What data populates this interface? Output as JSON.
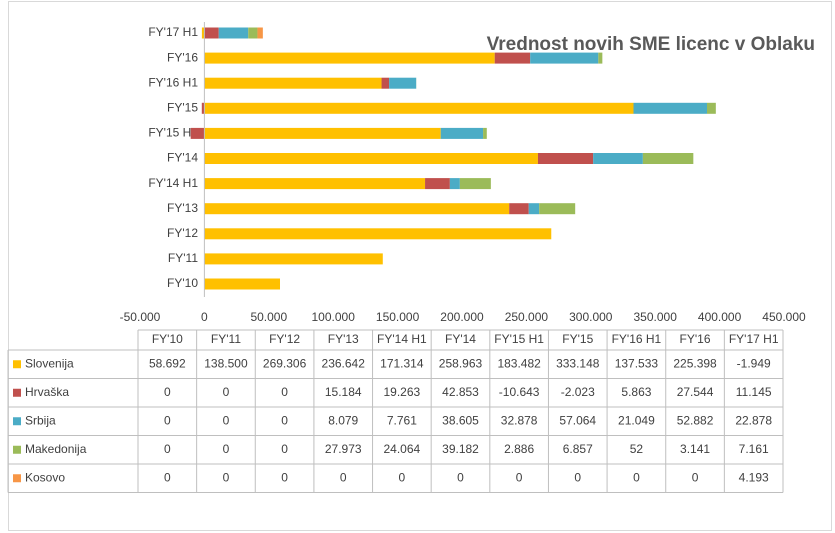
{
  "chart_data": {
    "type": "bar",
    "orientation": "horizontal",
    "stacked": true,
    "title": "Vrednost novih SME licenc v Oblaku",
    "categories": [
      "FY'10",
      "FY'11",
      "FY'12",
      "FY'13",
      "FY'14 H1",
      "FY'14",
      "FY'15 H1",
      "FY'15",
      "FY'16 H1",
      "FY'16",
      "FY'17 H1"
    ],
    "series": [
      {
        "name": "Slovenija",
        "color": "#FFC000",
        "values": [
          58692,
          138500,
          269306,
          236642,
          171314,
          258963,
          183482,
          333148,
          137533,
          225398,
          -1949
        ],
        "value_labels": [
          "58.692",
          "138.500",
          "269.306",
          "236.642",
          "171.314",
          "258.963",
          "183.482",
          "333.148",
          "137.533",
          "225.398",
          "-1.949"
        ]
      },
      {
        "name": "Hrvaška",
        "color": "#C0504D",
        "values": [
          0,
          0,
          0,
          15184,
          19263,
          42853,
          -10643,
          -2023,
          5863,
          27544,
          11145
        ],
        "value_labels": [
          "0",
          "0",
          "0",
          "15.184",
          "19.263",
          "42.853",
          "-10.643",
          "-2.023",
          "5.863",
          "27.544",
          "11.145"
        ]
      },
      {
        "name": "Srbija",
        "color": "#4BACC6",
        "values": [
          0,
          0,
          0,
          8079,
          7761,
          38605,
          32878,
          57064,
          21049,
          52882,
          22878
        ],
        "value_labels": [
          "0",
          "0",
          "0",
          "8.079",
          "7.761",
          "38.605",
          "32.878",
          "57.064",
          "21.049",
          "52.882",
          "22.878"
        ]
      },
      {
        "name": "Makedonija",
        "color": "#9BBB59",
        "values": [
          0,
          0,
          0,
          27973,
          24064,
          39182,
          2886,
          6857,
          52,
          3141,
          7161
        ],
        "value_labels": [
          "0",
          "0",
          "0",
          "27.973",
          "24.064",
          "39.182",
          "2.886",
          "6.857",
          "52",
          "3.141",
          "7.161"
        ]
      },
      {
        "name": "Kosovo",
        "color": "#F79646",
        "values": [
          0,
          0,
          0,
          0,
          0,
          0,
          0,
          0,
          0,
          0,
          4193
        ],
        "value_labels": [
          "0",
          "0",
          "0",
          "0",
          "0",
          "0",
          "0",
          "0",
          "0",
          "0",
          "4.193"
        ]
      }
    ],
    "xlim": [
      -50000,
      450000
    ],
    "xticks": [
      {
        "value": -50000,
        "label": "-50.000"
      },
      0,
      {
        "value": 50000,
        "label": "50.000"
      },
      {
        "value": 100000,
        "label": "100.000"
      },
      {
        "value": 150000,
        "label": "150.000"
      },
      {
        "value": 200000,
        "label": "200.000"
      },
      {
        "value": 250000,
        "label": "250.000"
      },
      {
        "value": 300000,
        "label": "300.000"
      },
      {
        "value": 350000,
        "label": "350.000"
      },
      {
        "value": 400000,
        "label": "400.000"
      },
      {
        "value": 450000,
        "label": "450.000"
      }
    ],
    "grid": false
  }
}
